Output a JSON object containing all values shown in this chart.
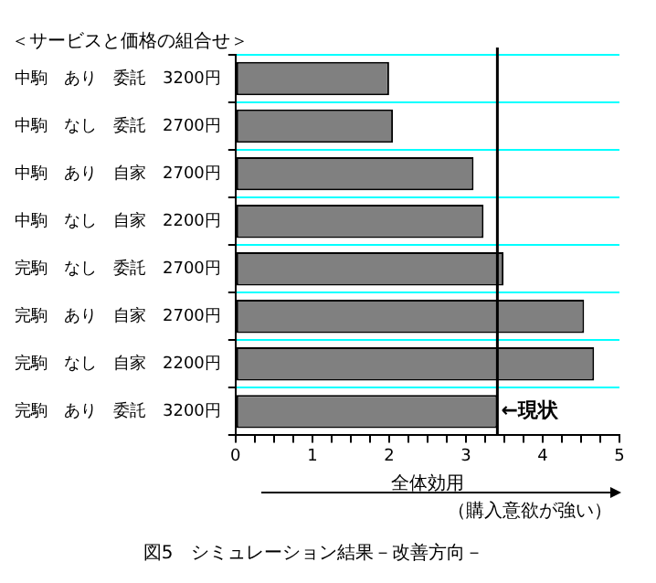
{
  "chart_data": {
    "type": "bar",
    "orientation": "horizontal",
    "title": "図5　シミュレーション結果－改善方向－",
    "xlabel": "全体効用",
    "ylabel": "＜サービスと価格の組合せ＞",
    "categories": [
      "中駒　あり　委託　3200円",
      "中駒　なし　委託　2700円",
      "中駒　あり　自家　2700円",
      "中駒　なし　自家　2200円",
      "完駒　なし　委託　2700円",
      "完駒　あり　自家　2700円",
      "完駒　なし　自家　2200円",
      "完駒　あり　委託　3200円"
    ],
    "values": [
      2.0,
      2.05,
      3.1,
      3.23,
      3.49,
      4.54,
      4.67,
      3.41
    ],
    "color": "#808080",
    "xlim": [
      0,
      5
    ],
    "xticks": [
      0,
      {
        "value": 0.25,
        "label": null
      },
      {
        "value": 0.5,
        "label": null
      },
      {
        "value": 0.75,
        "label": null
      },
      1,
      {
        "value": 1.25,
        "label": null
      },
      {
        "value": 1.5,
        "label": null
      },
      {
        "value": 1.75,
        "label": null
      },
      2,
      {
        "value": 2.25,
        "label": null
      },
      {
        "value": 2.5,
        "label": null
      },
      {
        "value": 2.75,
        "label": null
      },
      3,
      {
        "value": 3.25,
        "label": null
      },
      {
        "value": 3.5,
        "label": null
      },
      {
        "value": 3.75,
        "label": null
      },
      4,
      {
        "value": 4.25,
        "label": null
      },
      {
        "value": 4.5,
        "label": null
      },
      {
        "value": 4.75,
        "label": null
      },
      5
    ],
    "ref_lines": [
      {
        "axis": "x",
        "value": 3.41,
        "label": "←現状",
        "color": "#000000"
      }
    ],
    "annotations": [
      "（購入意欲が強い）"
    ],
    "grid": "y",
    "legend": false
  }
}
